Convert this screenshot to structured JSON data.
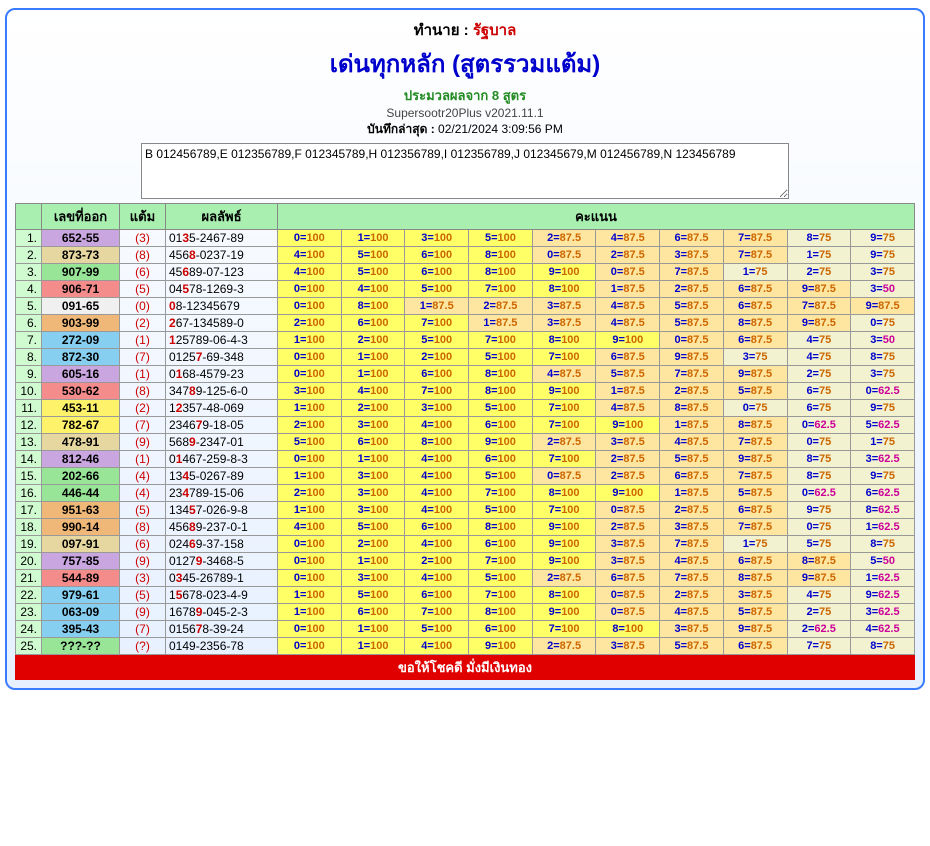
{
  "header": {
    "prefix": "ทำนาย : ",
    "suffix": "รัฐบาล",
    "title": "เด่นทุกหลัก (สูตรรวมแต้ม)",
    "sub1": "ประมวลผลจาก 8 สูตร",
    "sub2": "Supersootr20Plus v2021.11.1",
    "saved_label": "บันทึกล่าสุด : ",
    "saved_value": "02/21/2024 3:09:56 PM",
    "textarea": "B 012456789,E 012356789,F 012345789,H 012356789,I 012356789,J 012345679,M 012456789,N 123456789"
  },
  "columns": {
    "c1": "เลขที่ออก",
    "c2": "แต้ม",
    "c3": "ผลลัพธ์",
    "c4": "คะแนน"
  },
  "footer": "ขอให้โชคดี มั่งมีเงินทอง",
  "colors": {
    "yellow": "#fff26b",
    "red": "#f48c8c",
    "blue": "#87cff0",
    "purple": "#c9a6e0",
    "green": "#98e598",
    "orange": "#f0b878",
    "tan": "#e6d7a0",
    "gray": "#f0f0f0"
  },
  "bg_scores": {
    "100": "#ffff66",
    "87.5": "#ffe6a0",
    "75": "#f2f2d0",
    "62.5": "#f2f2d0",
    "50": "#f2f2d0"
  },
  "rows": [
    {
      "n": 1,
      "lx": "652-55",
      "bg": "purple",
      "pt": "(3)",
      "rs": "01<b>3</b>5-2467-89",
      "sc": [
        [
          "0",
          100
        ],
        [
          "1",
          100
        ],
        [
          "3",
          100
        ],
        [
          "5",
          100
        ],
        [
          "2",
          87.5
        ],
        [
          "4",
          87.5
        ],
        [
          "6",
          87.5
        ],
        [
          "7",
          87.5
        ],
        [
          "8",
          75
        ],
        [
          "9",
          75
        ]
      ]
    },
    {
      "n": 2,
      "lx": "873-73",
      "bg": "tan",
      "pt": "(8)",
      "rs": "456<b>8</b>-0237-19",
      "sc": [
        [
          "4",
          100
        ],
        [
          "5",
          100
        ],
        [
          "6",
          100
        ],
        [
          "8",
          100
        ],
        [
          "0",
          87.5
        ],
        [
          "2",
          87.5
        ],
        [
          "3",
          87.5
        ],
        [
          "7",
          87.5
        ],
        [
          "1",
          75
        ],
        [
          "9",
          75
        ]
      ]
    },
    {
      "n": 3,
      "lx": "907-99",
      "bg": "green",
      "pt": "(6)",
      "rs": "45<b>6</b>89-07-123",
      "sc": [
        [
          "4",
          100
        ],
        [
          "5",
          100
        ],
        [
          "6",
          100
        ],
        [
          "8",
          100
        ],
        [
          "9",
          100
        ],
        [
          "0",
          87.5
        ],
        [
          "7",
          87.5
        ],
        [
          "1",
          75
        ],
        [
          "2",
          75
        ],
        [
          "3",
          75
        ]
      ]
    },
    {
      "n": 4,
      "lx": "906-71",
      "bg": "red",
      "pt": "(5)",
      "rs": "04<b>5</b>78-1269-3",
      "sc": [
        [
          "0",
          100
        ],
        [
          "4",
          100
        ],
        [
          "5",
          100
        ],
        [
          "7",
          100
        ],
        [
          "8",
          100
        ],
        [
          "1",
          87.5
        ],
        [
          "2",
          87.5
        ],
        [
          "6",
          87.5
        ],
        [
          "9",
          87.5
        ],
        [
          "3",
          50
        ]
      ]
    },
    {
      "n": 5,
      "lx": "091-65",
      "bg": "gray",
      "pt": "(0)",
      "rs": "<b>0</b>8-12345679",
      "sc": [
        [
          "0",
          100
        ],
        [
          "8",
          100
        ],
        [
          "1",
          87.5
        ],
        [
          "2",
          87.5
        ],
        [
          "3",
          87.5
        ],
        [
          "4",
          87.5
        ],
        [
          "5",
          87.5
        ],
        [
          "6",
          87.5
        ],
        [
          "7",
          87.5
        ],
        [
          "9",
          87.5
        ]
      ]
    },
    {
      "n": 6,
      "lx": "903-99",
      "bg": "orange",
      "pt": "(2)",
      "rs": "<b>2</b>67-134589-0",
      "sc": [
        [
          "2",
          100
        ],
        [
          "6",
          100
        ],
        [
          "7",
          100
        ],
        [
          "1",
          87.5
        ],
        [
          "3",
          87.5
        ],
        [
          "4",
          87.5
        ],
        [
          "5",
          87.5
        ],
        [
          "8",
          87.5
        ],
        [
          "9",
          87.5
        ],
        [
          "0",
          75
        ]
      ]
    },
    {
      "n": 7,
      "lx": "272-09",
      "bg": "blue",
      "pt": "(1)",
      "rs": "<b>1</b>25789-06-4-3",
      "sc": [
        [
          "1",
          100
        ],
        [
          "2",
          100
        ],
        [
          "5",
          100
        ],
        [
          "7",
          100
        ],
        [
          "8",
          100
        ],
        [
          "9",
          100
        ],
        [
          "0",
          87.5
        ],
        [
          "6",
          87.5
        ],
        [
          "4",
          75
        ],
        [
          "3",
          50
        ]
      ]
    },
    {
      "n": 8,
      "lx": "872-30",
      "bg": "blue",
      "pt": "(7)",
      "rs": "0125<b>7</b>-69-348",
      "sc": [
        [
          "0",
          100
        ],
        [
          "1",
          100
        ],
        [
          "2",
          100
        ],
        [
          "5",
          100
        ],
        [
          "7",
          100
        ],
        [
          "6",
          87.5
        ],
        [
          "9",
          87.5
        ],
        [
          "3",
          75
        ],
        [
          "4",
          75
        ],
        [
          "8",
          75
        ]
      ]
    },
    {
      "n": 9,
      "lx": "605-16",
      "bg": "purple",
      "pt": "(1)",
      "rs": "0<b>1</b>68-4579-23",
      "sc": [
        [
          "0",
          100
        ],
        [
          "1",
          100
        ],
        [
          "6",
          100
        ],
        [
          "8",
          100
        ],
        [
          "4",
          87.5
        ],
        [
          "5",
          87.5
        ],
        [
          "7",
          87.5
        ],
        [
          "9",
          87.5
        ],
        [
          "2",
          75
        ],
        [
          "3",
          75
        ]
      ]
    },
    {
      "n": 10,
      "lx": "530-62",
      "bg": "red",
      "pt": "(8)",
      "rs": "347<b>8</b>9-125-6-0",
      "sc": [
        [
          "3",
          100
        ],
        [
          "4",
          100
        ],
        [
          "7",
          100
        ],
        [
          "8",
          100
        ],
        [
          "9",
          100
        ],
        [
          "1",
          87.5
        ],
        [
          "2",
          87.5
        ],
        [
          "5",
          87.5
        ],
        [
          "6",
          75
        ],
        [
          "0",
          62.5
        ]
      ]
    },
    {
      "n": 11,
      "lx": "453-11",
      "bg": "yellow",
      "pt": "(2)",
      "rs": "1<b>2</b>357-48-069",
      "sc": [
        [
          "1",
          100
        ],
        [
          "2",
          100
        ],
        [
          "3",
          100
        ],
        [
          "5",
          100
        ],
        [
          "7",
          100
        ],
        [
          "4",
          87.5
        ],
        [
          "8",
          87.5
        ],
        [
          "0",
          75
        ],
        [
          "6",
          75
        ],
        [
          "9",
          75
        ]
      ]
    },
    {
      "n": 12,
      "lx": "782-67",
      "bg": "yellow",
      "pt": "(7)",
      "rs": "2346<b>7</b>9-18-05",
      "sc": [
        [
          "2",
          100
        ],
        [
          "3",
          100
        ],
        [
          "4",
          100
        ],
        [
          "6",
          100
        ],
        [
          "7",
          100
        ],
        [
          "9",
          100
        ],
        [
          "1",
          87.5
        ],
        [
          "8",
          87.5
        ],
        [
          "0",
          62.5
        ],
        [
          "5",
          62.5
        ]
      ]
    },
    {
      "n": 13,
      "lx": "478-91",
      "bg": "tan",
      "pt": "(9)",
      "rs": "568<b>9</b>-2347-01",
      "sc": [
        [
          "5",
          100
        ],
        [
          "6",
          100
        ],
        [
          "8",
          100
        ],
        [
          "9",
          100
        ],
        [
          "2",
          87.5
        ],
        [
          "3",
          87.5
        ],
        [
          "4",
          87.5
        ],
        [
          "7",
          87.5
        ],
        [
          "0",
          75
        ],
        [
          "1",
          75
        ]
      ]
    },
    {
      "n": 14,
      "lx": "812-46",
      "bg": "purple",
      "pt": "(1)",
      "rs": "0<b>1</b>467-259-8-3",
      "sc": [
        [
          "0",
          100
        ],
        [
          "1",
          100
        ],
        [
          "4",
          100
        ],
        [
          "6",
          100
        ],
        [
          "7",
          100
        ],
        [
          "2",
          87.5
        ],
        [
          "5",
          87.5
        ],
        [
          "9",
          87.5
        ],
        [
          "8",
          75
        ],
        [
          "3",
          62.5
        ]
      ]
    },
    {
      "n": 15,
      "lx": "202-66",
      "bg": "green",
      "pt": "(4)",
      "rs": "13<b>4</b>5-0267-89",
      "sc": [
        [
          "1",
          100
        ],
        [
          "3",
          100
        ],
        [
          "4",
          100
        ],
        [
          "5",
          100
        ],
        [
          "0",
          87.5
        ],
        [
          "2",
          87.5
        ],
        [
          "6",
          87.5
        ],
        [
          "7",
          87.5
        ],
        [
          "8",
          75
        ],
        [
          "9",
          75
        ]
      ]
    },
    {
      "n": 16,
      "lx": "446-44",
      "bg": "green",
      "pt": "(4)",
      "rs": "23<b>4</b>789-15-06",
      "sc": [
        [
          "2",
          100
        ],
        [
          "3",
          100
        ],
        [
          "4",
          100
        ],
        [
          "7",
          100
        ],
        [
          "8",
          100
        ],
        [
          "9",
          100
        ],
        [
          "1",
          87.5
        ],
        [
          "5",
          87.5
        ],
        [
          "0",
          62.5
        ],
        [
          "6",
          62.5
        ]
      ]
    },
    {
      "n": 17,
      "lx": "951-63",
      "bg": "orange",
      "pt": "(5)",
      "rs": "134<b>5</b>7-026-9-8",
      "sc": [
        [
          "1",
          100
        ],
        [
          "3",
          100
        ],
        [
          "4",
          100
        ],
        [
          "5",
          100
        ],
        [
          "7",
          100
        ],
        [
          "0",
          87.5
        ],
        [
          "2",
          87.5
        ],
        [
          "6",
          87.5
        ],
        [
          "9",
          75
        ],
        [
          "8",
          62.5
        ]
      ]
    },
    {
      "n": 18,
      "lx": "990-14",
      "bg": "orange",
      "pt": "(8)",
      "rs": "456<b>8</b>9-237-0-1",
      "sc": [
        [
          "4",
          100
        ],
        [
          "5",
          100
        ],
        [
          "6",
          100
        ],
        [
          "8",
          100
        ],
        [
          "9",
          100
        ],
        [
          "2",
          87.5
        ],
        [
          "3",
          87.5
        ],
        [
          "7",
          87.5
        ],
        [
          "0",
          75
        ],
        [
          "1",
          62.5
        ]
      ]
    },
    {
      "n": 19,
      "lx": "097-91",
      "bg": "tan",
      "pt": "(6)",
      "rs": "024<b>6</b>9-37-158",
      "sc": [
        [
          "0",
          100
        ],
        [
          "2",
          100
        ],
        [
          "4",
          100
        ],
        [
          "6",
          100
        ],
        [
          "9",
          100
        ],
        [
          "3",
          87.5
        ],
        [
          "7",
          87.5
        ],
        [
          "1",
          75
        ],
        [
          "5",
          75
        ],
        [
          "8",
          75
        ]
      ]
    },
    {
      "n": 20,
      "lx": "757-85",
      "bg": "purple",
      "pt": "(9)",
      "rs": "0127<b>9</b>-3468-5",
      "sc": [
        [
          "0",
          100
        ],
        [
          "1",
          100
        ],
        [
          "2",
          100
        ],
        [
          "7",
          100
        ],
        [
          "9",
          100
        ],
        [
          "3",
          87.5
        ],
        [
          "4",
          87.5
        ],
        [
          "6",
          87.5
        ],
        [
          "8",
          87.5
        ],
        [
          "5",
          50
        ]
      ]
    },
    {
      "n": 21,
      "lx": "544-89",
      "bg": "red",
      "pt": "(3)",
      "rs": "0<b>3</b>45-26789-1",
      "sc": [
        [
          "0",
          100
        ],
        [
          "3",
          100
        ],
        [
          "4",
          100
        ],
        [
          "5",
          100
        ],
        [
          "2",
          87.5
        ],
        [
          "6",
          87.5
        ],
        [
          "7",
          87.5
        ],
        [
          "8",
          87.5
        ],
        [
          "9",
          87.5
        ],
        [
          "1",
          62.5
        ]
      ]
    },
    {
      "n": 22,
      "lx": "979-61",
      "bg": "blue",
      "pt": "(5)",
      "rs": "1<b>5</b>678-023-4-9",
      "sc": [
        [
          "1",
          100
        ],
        [
          "5",
          100
        ],
        [
          "6",
          100
        ],
        [
          "7",
          100
        ],
        [
          "8",
          100
        ],
        [
          "0",
          87.5
        ],
        [
          "2",
          87.5
        ],
        [
          "3",
          87.5
        ],
        [
          "4",
          75
        ],
        [
          "9",
          62.5
        ]
      ]
    },
    {
      "n": 23,
      "lx": "063-09",
      "bg": "blue",
      "pt": "(9)",
      "rs": "1678<b>9</b>-045-2-3",
      "sc": [
        [
          "1",
          100
        ],
        [
          "6",
          100
        ],
        [
          "7",
          100
        ],
        [
          "8",
          100
        ],
        [
          "9",
          100
        ],
        [
          "0",
          87.5
        ],
        [
          "4",
          87.5
        ],
        [
          "5",
          87.5
        ],
        [
          "2",
          75
        ],
        [
          "3",
          62.5
        ]
      ]
    },
    {
      "n": 24,
      "lx": "395-43",
      "bg": "blue",
      "pt": "(7)",
      "rs": "0156<b>7</b>8-39-24",
      "sc": [
        [
          "0",
          100
        ],
        [
          "1",
          100
        ],
        [
          "5",
          100
        ],
        [
          "6",
          100
        ],
        [
          "7",
          100
        ],
        [
          "8",
          100
        ],
        [
          "3",
          87.5
        ],
        [
          "9",
          87.5
        ],
        [
          "2",
          62.5
        ],
        [
          "4",
          62.5
        ]
      ]
    },
    {
      "n": 25,
      "lx": "???-??",
      "bg": "green",
      "pt": "(?)",
      "rs": "0149-2356-78",
      "sc": [
        [
          "0",
          100
        ],
        [
          "1",
          100
        ],
        [
          "4",
          100
        ],
        [
          "9",
          100
        ],
        [
          "2",
          87.5
        ],
        [
          "3",
          87.5
        ],
        [
          "5",
          87.5
        ],
        [
          "6",
          87.5
        ],
        [
          "7",
          75
        ],
        [
          "8",
          75
        ]
      ]
    }
  ]
}
